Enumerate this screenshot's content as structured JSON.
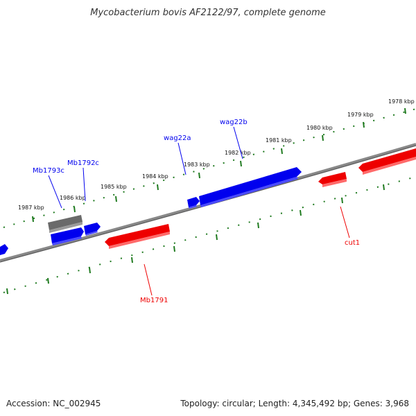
{
  "title": "Mycobacterium bovis AF2122/97, complete genome",
  "footer": {
    "accession": "Accession: NC_002945",
    "summary": "Topology: circular; Length: 4,345,492 bp; Genes: 3,968"
  },
  "colors": {
    "forward_gene": "#0000ee",
    "reverse_gene": "#ee0000",
    "pseudo_gene": "#666666",
    "backbone": "#808080",
    "tick": "#1f7a1f"
  },
  "scale_labels": [
    "1987 kbp",
    "1986 kbp",
    "1985 kbp",
    "1984 kbp",
    "1983 kbp",
    "1982 kbp",
    "1981 kbp",
    "1980 kbp",
    "1979 kbp",
    "1978 kbp"
  ],
  "gene_labels": {
    "mb1793c": "Mb1793c",
    "mb1792c": "Mb1792c",
    "wag22a": "wag22a",
    "wag22b": "wag22b",
    "cut1": "cut1",
    "mb1791": "Mb1791"
  }
}
